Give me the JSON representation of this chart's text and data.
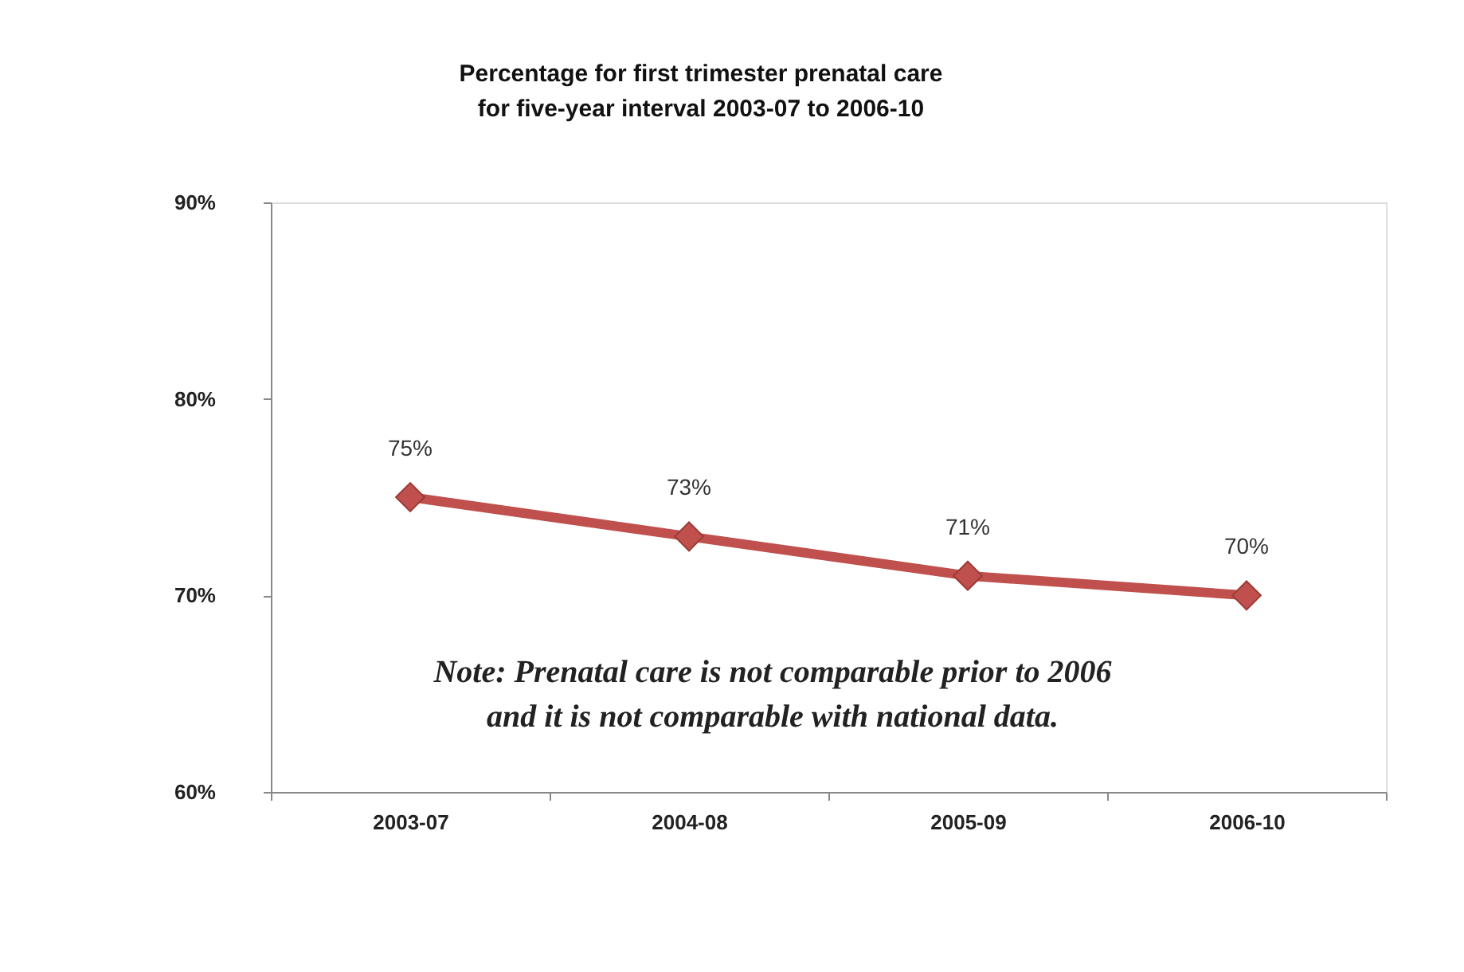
{
  "chart_data": {
    "type": "line",
    "title": "Percentage for first trimester prenatal care for five-year interval 2003-07 to 2006-10",
    "categories": [
      "2003-07",
      "2004-08",
      "2005-09",
      "2006-10"
    ],
    "series": [
      {
        "color": "#c0504d",
        "values": [
          75,
          73,
          71,
          70
        ],
        "value_labels": [
          "75%",
          "73%",
          "71%",
          "70%"
        ]
      }
    ],
    "ylim": [
      60,
      90
    ],
    "yticks": [
      {
        "value": 60,
        "label": "60%"
      },
      {
        "value": 70,
        "label": "70%"
      },
      {
        "value": 80,
        "label": "80%"
      },
      {
        "value": 90,
        "label": "90%"
      }
    ],
    "grid": false,
    "marker": "diamond",
    "line_style": "solid",
    "annotations": [
      "Note: Prenatal care is not comparable prior to 2006 and it is not comparable with national data."
    ]
  }
}
